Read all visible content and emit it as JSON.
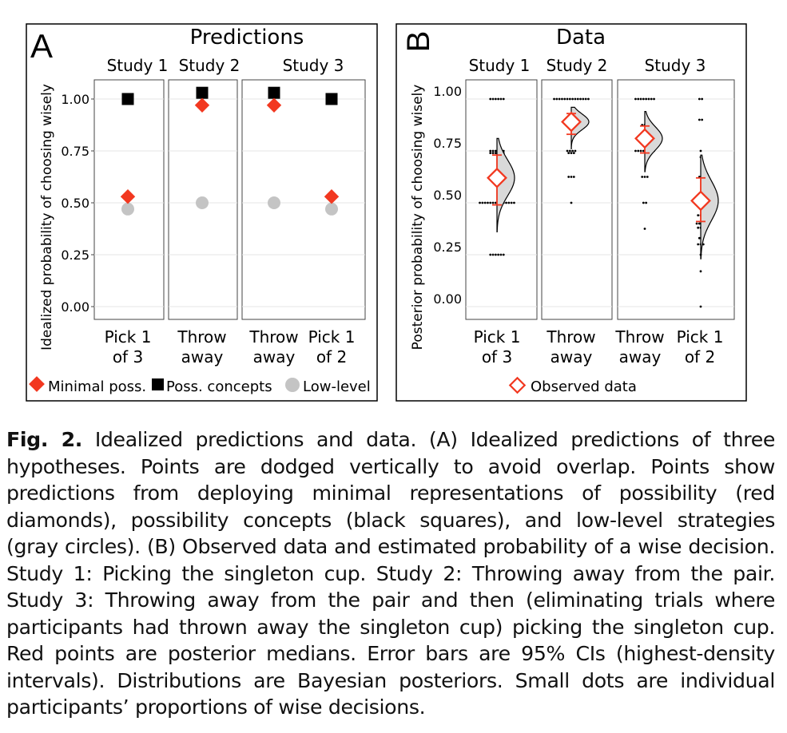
{
  "chart_data": [
    {
      "panel": "A",
      "type": "scatter",
      "title": "Predictions",
      "ylabel": "Idealized  probability of choosing wisely",
      "ylim": [
        0,
        1
      ],
      "yticks": [
        "0.00",
        "0.25",
        "0.50",
        "0.75",
        "1.00"
      ],
      "facets": [
        {
          "label": "Study 1",
          "categories": [
            [
              "Pick 1",
              "of 3"
            ]
          ]
        },
        {
          "label": "Study 2",
          "categories": [
            [
              "Throw",
              "away"
            ]
          ]
        },
        {
          "label": "Study 3",
          "categories": [
            [
              "Throw",
              "away"
            ],
            [
              "Pick 1",
              "of 2"
            ]
          ]
        }
      ],
      "series": [
        {
          "name": "Minimal poss.",
          "marker": "diamond",
          "color": "#f23820",
          "values": [
            0.53,
            0.97,
            0.97,
            0.53
          ]
        },
        {
          "name": "Poss. concepts",
          "marker": "square",
          "color": "#000000",
          "values": [
            1.0,
            1.03,
            1.03,
            1.0
          ]
        },
        {
          "name": "Low-level",
          "marker": "circle",
          "color": "#c4c4c4",
          "values": [
            0.47,
            0.5,
            0.5,
            0.47
          ]
        }
      ],
      "legend": "bottom"
    },
    {
      "panel": "B",
      "type": "scatter",
      "title": "Data",
      "ylabel": "Posterior  probability of choosing wisely",
      "ylim": [
        0,
        1
      ],
      "yticks": [
        "0.00",
        "0.25",
        "0.50",
        "0.75",
        "1.00"
      ],
      "facets": [
        {
          "label": "Study 1",
          "categories": [
            [
              "Pick 1",
              "of 3"
            ]
          ]
        },
        {
          "label": "Study 2",
          "categories": [
            [
              "Throw",
              "away"
            ]
          ]
        },
        {
          "label": "Study 3",
          "categories": [
            [
              "Throw",
              "away"
            ],
            [
              "Pick 1",
              "of 2"
            ]
          ]
        }
      ],
      "series": [
        {
          "name": "Observed data",
          "marker": "open-diamond",
          "color": "#f23820",
          "medians": [
            0.62,
            0.89,
            0.81,
            0.51
          ],
          "ci95": [
            [
              0.49,
              0.73
            ],
            [
              0.83,
              0.93
            ],
            [
              0.74,
              0.87
            ],
            [
              0.41,
              0.62
            ]
          ],
          "posterior_range": [
            [
              0.36,
              0.81
            ],
            [
              0.76,
              0.96
            ],
            [
              0.65,
              0.94
            ],
            [
              0.23,
              0.73
            ]
          ]
        }
      ],
      "participants": [
        [
          {
            "y": 1.0,
            "n": 6
          },
          {
            "y": 0.75,
            "n": 6
          },
          {
            "y": 0.74,
            "n": 6
          },
          {
            "y": 0.5,
            "n": 14
          },
          {
            "y": 0.25,
            "n": 6
          }
        ],
        [
          {
            "y": 1.0,
            "n": 14
          },
          {
            "y": 0.75,
            "n": 4
          },
          {
            "y": 0.74,
            "n": 3
          },
          {
            "y": 0.625,
            "n": 3
          },
          {
            "y": 0.5,
            "n": 1
          }
        ],
        [
          {
            "y": 1.0,
            "n": 8
          },
          {
            "y": 0.875,
            "n": 3
          },
          {
            "y": 0.75,
            "n": 8
          },
          {
            "y": 0.625,
            "n": 3
          },
          {
            "y": 0.5,
            "n": 2
          },
          {
            "y": 0.375,
            "n": 1
          }
        ],
        [
          {
            "y": 1.0,
            "n": 2
          },
          {
            "y": 0.9,
            "n": 2
          },
          {
            "y": 0.75,
            "n": 1
          },
          {
            "y": 0.72,
            "n": 1
          },
          {
            "y": 0.625,
            "n": 2
          },
          {
            "y": 0.5,
            "n": 2
          },
          {
            "y": 0.44,
            "n": 3
          },
          {
            "y": 0.4,
            "n": 4
          },
          {
            "y": 0.38,
            "n": 3
          },
          {
            "y": 0.33,
            "n": 2
          },
          {
            "y": 0.3,
            "n": 3
          },
          {
            "y": 0.25,
            "n": 1
          },
          {
            "y": 0.17,
            "n": 1
          },
          {
            "y": 0.0,
            "n": 1
          }
        ]
      ],
      "legend": "bottom"
    }
  ],
  "caption": {
    "label": "Fig. 2.",
    "text": "Idealized predictions and data. (A) Idealized predictions of three hypotheses. Points are dodged vertically to avoid overlap. Points show predictions from deploying minimal representations of possibility (red diamonds), possibility concepts (black squares), and low-level strategies (gray circles). (B) Observed data and estimated probability of a wise decision. Study 1: Picking the singleton cup. Study 2: Throwing away from the pair. Study 3: Throwing away from the pair and then (eliminating trials where participants had thrown away the singleton cup) picking the singleton cup. Red points are posterior medians. Error bars are 95% CIs (highest-density intervals). Distributions are Bayesian posteriors. Small dots are individual participants’ proportions of wise decisions."
  },
  "colors": {
    "accent": "#f23820",
    "gray": "#c4c4c4",
    "grid": "#e4e4e4",
    "density_fill": "#d9d9d9"
  }
}
